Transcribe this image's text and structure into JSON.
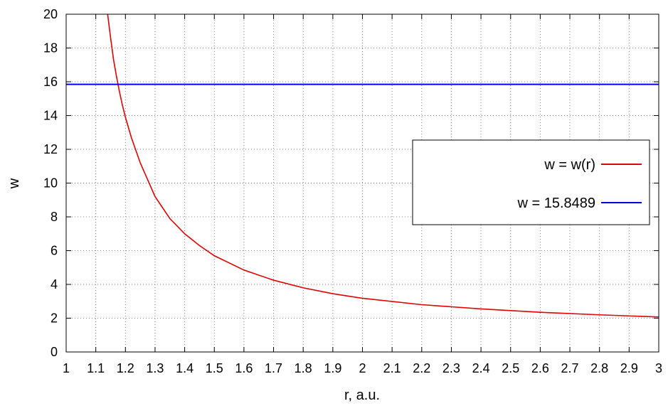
{
  "chart_data": {
    "type": "line",
    "title": "",
    "xlabel": "r, a.u.",
    "ylabel": "w",
    "xlim": [
      1,
      3
    ],
    "ylim": [
      0,
      20
    ],
    "x_ticks": [
      "1",
      "1.1",
      "1.2",
      "1.3",
      "1.4",
      "1.5",
      "1.6",
      "1.7",
      "1.8",
      "1.9",
      "2",
      "2.1",
      "2.2",
      "2.3",
      "2.4",
      "2.5",
      "2.6",
      "2.7",
      "2.8",
      "2.9",
      "3"
    ],
    "y_ticks": [
      "0",
      "2",
      "4",
      "6",
      "8",
      "10",
      "12",
      "14",
      "16",
      "18",
      "20"
    ],
    "grid": true,
    "legend_position": "right",
    "series": [
      {
        "name": "w = w(r)",
        "color": "#e00000",
        "x": [
          1.14,
          1.15,
          1.16,
          1.17,
          1.18,
          1.19,
          1.2,
          1.22,
          1.25,
          1.3,
          1.35,
          1.4,
          1.45,
          1.5,
          1.6,
          1.7,
          1.8,
          1.9,
          2.0,
          2.2,
          2.4,
          2.6,
          2.8,
          3.0
        ],
        "values": [
          20.0,
          18.6,
          17.3,
          16.3,
          15.4,
          14.6,
          13.9,
          12.7,
          11.2,
          9.2,
          7.9,
          7.0,
          6.3,
          5.7,
          4.85,
          4.25,
          3.8,
          3.45,
          3.18,
          2.8,
          2.55,
          2.35,
          2.2,
          2.07
        ]
      },
      {
        "name": "w = 15.8489",
        "color": "#0000e0",
        "x": [
          1,
          3
        ],
        "values": [
          15.8489,
          15.8489
        ]
      }
    ]
  }
}
